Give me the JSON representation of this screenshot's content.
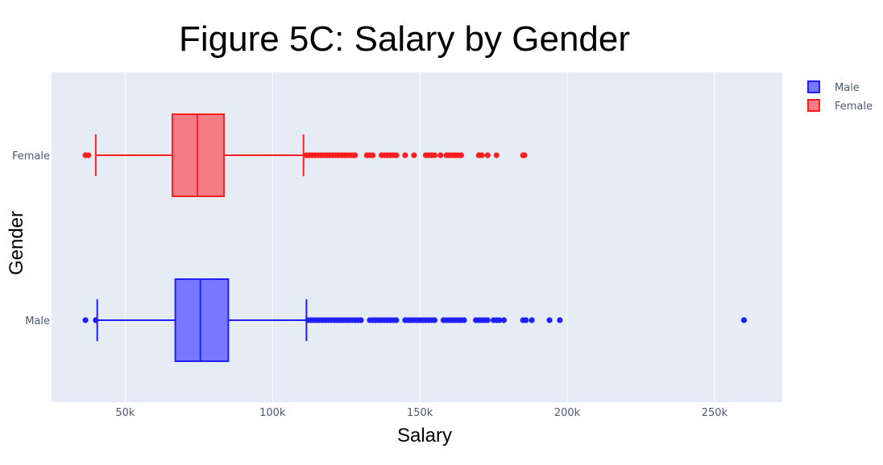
{
  "chart_data": {
    "type": "box",
    "orientation": "horizontal",
    "title": "Figure 5C: Salary by Gender",
    "xlabel": "Salary",
    "ylabel": "Gender",
    "xlim": [
      25000,
      273000
    ],
    "xticks": [
      {
        "value": 50000,
        "label": "50k"
      },
      {
        "value": 100000,
        "label": "100k"
      },
      {
        "value": 150000,
        "label": "150k"
      },
      {
        "value": 200000,
        "label": "200k"
      },
      {
        "value": 250000,
        "label": "250k"
      }
    ],
    "categories": [
      "Female",
      "Male"
    ],
    "grid": true,
    "legend_position": "top-right",
    "plot_background": "#e5ecf6",
    "series": [
      {
        "name": "Male",
        "category": "Male",
        "color": "#1f1fff",
        "fill": "#7777ff",
        "lower_fence": 40500,
        "q1": 67000,
        "median": 75500,
        "q3": 85000,
        "upper_fence": 111500,
        "outliers": [
          36500,
          40000,
          112000,
          113000,
          114000,
          115000,
          116000,
          117000,
          118000,
          119000,
          120000,
          121000,
          122000,
          123000,
          124000,
          125000,
          126000,
          127000,
          128000,
          129000,
          130000,
          133000,
          134000,
          135000,
          136000,
          137000,
          138000,
          139000,
          140000,
          141000,
          142000,
          145000,
          146000,
          147000,
          148000,
          149000,
          150000,
          151000,
          152000,
          153000,
          154000,
          155000,
          158000,
          159000,
          160000,
          161000,
          162000,
          163000,
          164000,
          165000,
          169000,
          170000,
          171000,
          172000,
          173000,
          175000,
          176000,
          177000,
          178500,
          185000,
          186000,
          188000,
          194000,
          197500,
          260000
        ]
      },
      {
        "name": "Female",
        "category": "Female",
        "color": "#ff1f1f",
        "fill": "#f47c84",
        "lower_fence": 40000,
        "q1": 66000,
        "median": 74500,
        "q3": 83500,
        "upper_fence": 110500,
        "outliers": [
          36500,
          37500,
          111500,
          112500,
          113500,
          114500,
          115500,
          116500,
          117500,
          118500,
          119500,
          120500,
          121500,
          122500,
          123500,
          124500,
          125500,
          126500,
          127500,
          128000,
          132000,
          133000,
          134000,
          137000,
          138000,
          139000,
          140000,
          141000,
          142000,
          145000,
          148000,
          152000,
          153000,
          154000,
          155000,
          157000,
          159000,
          160000,
          161000,
          162000,
          163000,
          164000,
          170000,
          171000,
          173000,
          176000,
          185000,
          185500
        ]
      }
    ]
  }
}
